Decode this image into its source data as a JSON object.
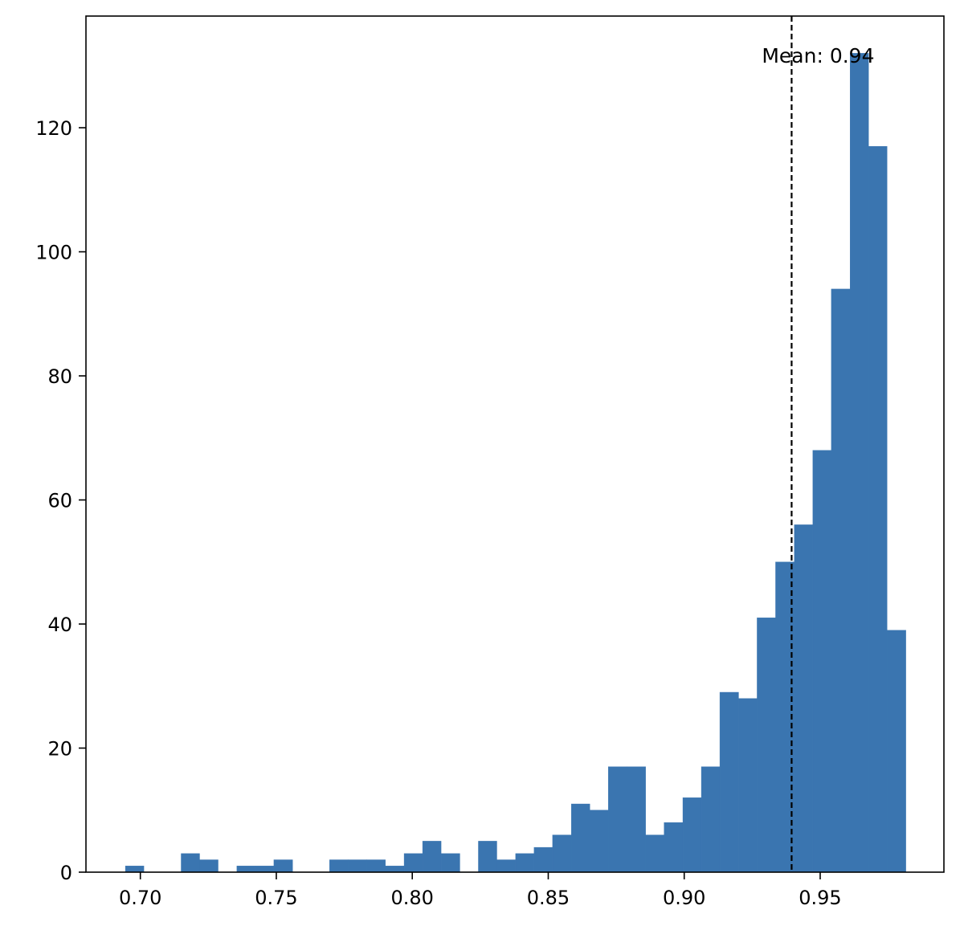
{
  "chart_data": {
    "type": "bar",
    "subtype": "histogram",
    "title": "",
    "xlabel": "",
    "ylabel": "",
    "xlim": [
      0.68,
      0.9955
    ],
    "ylim": [
      0,
      138
    ],
    "bar_color": "#3a75b0",
    "grid": false,
    "x_ticks": [
      0.7,
      0.75,
      0.8,
      0.85,
      0.9,
      0.95
    ],
    "x_tick_labels": [
      "0.70",
      "0.75",
      "0.80",
      "0.85",
      "0.90",
      "0.95"
    ],
    "y_ticks": [
      0,
      20,
      40,
      60,
      80,
      100,
      120
    ],
    "y_tick_labels": [
      "0",
      "20",
      "40",
      "60",
      "80",
      "100",
      "120"
    ],
    "bin_edges": [
      0.6945,
      0.7013,
      0.7081,
      0.715,
      0.7218,
      0.7286,
      0.7355,
      0.7423,
      0.7491,
      0.756,
      0.7628,
      0.7696,
      0.7765,
      0.7833,
      0.7901,
      0.797,
      0.8038,
      0.8106,
      0.8175,
      0.8243,
      0.8311,
      0.838,
      0.8448,
      0.8516,
      0.8585,
      0.8653,
      0.8721,
      0.879,
      0.8858,
      0.8926,
      0.8995,
      0.9063,
      0.9131,
      0.92,
      0.9268,
      0.9336,
      0.9405,
      0.9473,
      0.9541,
      0.961,
      0.9678,
      0.9746,
      0.9815
    ],
    "counts": [
      1,
      0,
      0,
      3,
      2,
      0,
      1,
      1,
      2,
      0,
      0,
      2,
      2,
      2,
      1,
      3,
      5,
      3,
      0,
      5,
      2,
      3,
      4,
      6,
      11,
      10,
      17,
      17,
      6,
      8,
      12,
      17,
      29,
      28,
      41,
      50,
      56,
      68,
      94,
      132,
      117,
      39
    ],
    "mean_line": {
      "x": 0.9395,
      "style": "dashed",
      "color": "#000000",
      "label": "Mean: 0.94"
    }
  }
}
